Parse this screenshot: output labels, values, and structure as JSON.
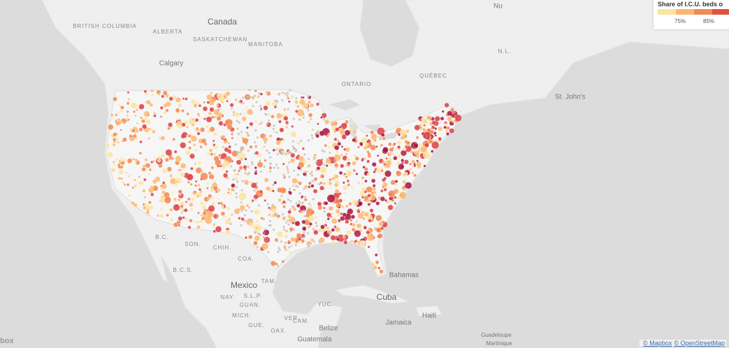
{
  "legend": {
    "title": "Share of I.C.U. beds o",
    "colors": [
      "#fbe3a3",
      "#f9b775",
      "#f08a5a",
      "#e0523e"
    ],
    "labels": [
      "75%",
      "85%"
    ]
  },
  "places": {
    "canada": "Canada",
    "british_columbia": "BRITISH COLUMBIA",
    "alberta": "ALBERTA",
    "saskatchewan": "SASKATCHEWAN",
    "manitoba": "MANITOBA",
    "ontario": "ONTARIO",
    "quebec": "QUÉBEC",
    "nl": "N.L.",
    "calgary": "Calgary",
    "st_johns": "St. John's",
    "nunavut": "Nu",
    "bc_mx": "B.C.",
    "bcs": "B.C.S.",
    "son": "SON.",
    "chih": "CHIH.",
    "coa": "COA.",
    "tam": "TAM.",
    "mexico": "Mexico",
    "slp": "S.L.P.",
    "nay": "NAY.",
    "guan": "GUAN.",
    "mich": "MICH.",
    "gue": "GUE.",
    "oax": "OAX.",
    "ver": "VER.",
    "cam": "CAM.",
    "yuc": "YUC.",
    "belize": "Belize",
    "guatemala": "Guatemala",
    "cuba": "Cuba",
    "bahamas": "Bahamas",
    "haiti": "Haiti",
    "jamaica": "Jamaica",
    "guadeloupe": "Guadeloupe",
    "martinique": "Martinique"
  },
  "attribution": {
    "logo": "box",
    "mapbox": "© Mapbox",
    "osm": "© OpenStreetMap"
  }
}
